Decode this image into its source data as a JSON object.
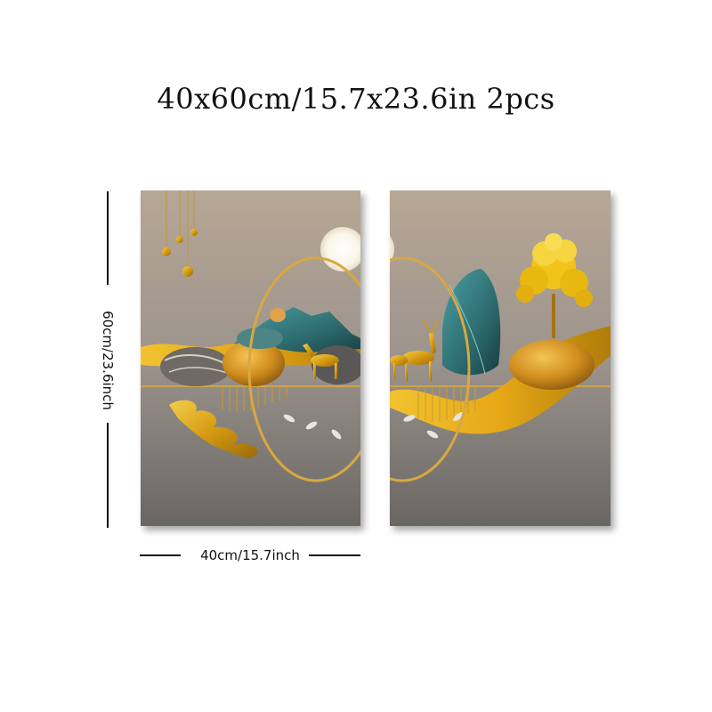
{
  "title": "40x60cm/15.7x23.6in 2pcs",
  "dimensions": {
    "height_label": "60cm/23.6inch",
    "width_label": "40cm/15.7inch"
  },
  "colors": {
    "canvas_top": "#b7a795",
    "canvas_bottom": "#696663",
    "gold": "#d8a01e",
    "teal": "#2d6b6e"
  }
}
